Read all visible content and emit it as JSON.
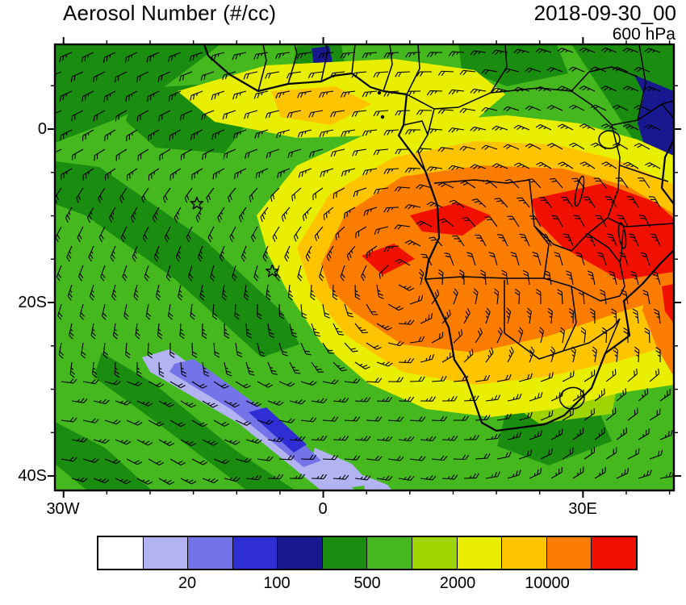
{
  "header": {
    "title": "Aerosol Number (#/cc)",
    "date": "2018-09-30_00",
    "level": "600 hPa"
  },
  "axes": {
    "x": {
      "range": [
        -31,
        40.5
      ],
      "minor_step": 5,
      "ticks": [
        {
          "label": "30W",
          "value": -30
        },
        {
          "label": "0",
          "value": 0
        },
        {
          "label": "30E",
          "value": 30
        }
      ]
    },
    "y": {
      "range": [
        9.77,
        -41.67
      ],
      "minor_step": 5,
      "ticks": [
        {
          "label": "0",
          "value": 0
        },
        {
          "label": "20S",
          "value": -20
        },
        {
          "label": "40S",
          "value": -40
        }
      ]
    }
  },
  "colorbar": {
    "colors": [
      "#ffffff",
      "#b3b3f2",
      "#7474e8",
      "#2e2ed4",
      "#18188f",
      "#1a8c10",
      "#44b81e",
      "#9ed400",
      "#e8ee00",
      "#ffc400",
      "#fb7d00",
      "#f01000"
    ],
    "tick_labels": [
      "20",
      "100",
      "500",
      "2000",
      "10000"
    ],
    "boundary_indices": [
      2,
      4,
      6,
      8,
      10
    ]
  },
  "chart_data": {
    "type": "heatmap",
    "title": "Aerosol Number (#/cc)",
    "timestamp": "2018-09-30_00",
    "pressure_level": "600 hPa",
    "projection": "cylindrical lat-lon over Africa / South Atlantic",
    "lon_range_deg_east": [
      -31,
      40.5
    ],
    "lat_range_deg_north": [
      -41.7,
      9.8
    ],
    "x_tick_labels": [
      "30W",
      "0",
      "30E"
    ],
    "y_tick_labels": [
      "0",
      "20S",
      "40S"
    ],
    "colorbar_orientation": "horizontal",
    "colorbar_labels_shown": [
      20,
      100,
      500,
      2000,
      10000
    ],
    "estimated_level_boundaries": [
      10,
      20,
      50,
      100,
      200,
      500,
      1000,
      2000,
      5000,
      10000,
      20000
    ],
    "overlays": [
      "wind-barbs",
      "coastlines",
      "country-borders",
      "lakes",
      "star-markers"
    ],
    "markers": [
      {
        "symbol": "star",
        "lon": -14.6,
        "lat": -8.6
      },
      {
        "symbol": "star",
        "lon": -5.9,
        "lat": -16.4
      }
    ],
    "features": [
      "Large biomass-burning plume (2000-20000 #/cc, yellow-orange-red) over Angola/DRC/Zambia spiraling west over the South Atlantic",
      "Maximum >10000 #/cc (red) over eastern Zambia / Malawi / Mozambique and at the eastern map edge",
      "Yellow band (~2000 #/cc) along the Gulf of Guinea coast north of the equator",
      "Clean streak <100 #/cc (blue/lavender) over the far South Atlantic, southwest sector",
      "Background field ~500-2000 #/cc (greens) elsewhere; dark green/blue minima near the northeast corner"
    ]
  }
}
